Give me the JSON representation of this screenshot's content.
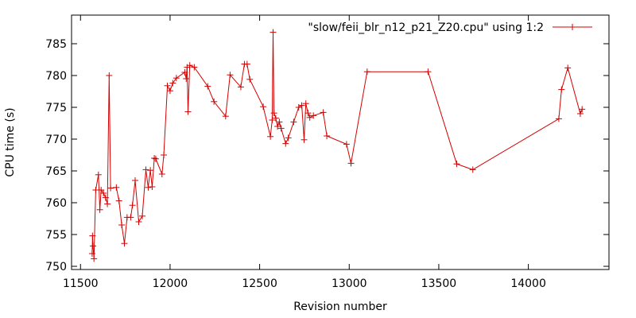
{
  "chart_data": {
    "type": "line",
    "xlabel": "Revision number",
    "ylabel": "CPU time (s)",
    "xlim": [
      11450,
      14450
    ],
    "ylim": [
      749.5,
      789.5
    ],
    "xticks": [
      11500,
      12000,
      12500,
      13000,
      13500,
      14000
    ],
    "yticks": [
      750,
      755,
      760,
      765,
      770,
      775,
      780,
      785
    ],
    "grid": false,
    "legend_position": "top-right",
    "line_color": "#d40000",
    "series": [
      {
        "name": "\"slow/feii_blr_n12_p21_Z20.cpu\" using 1:2",
        "x": [
          11565,
          11567,
          11570,
          11575,
          11585,
          11600,
          11608,
          11615,
          11628,
          11640,
          11650,
          11660,
          11668,
          11700,
          11715,
          11730,
          11745,
          11760,
          11780,
          11790,
          11805,
          11825,
          11845,
          11865,
          11878,
          11890,
          11900,
          11912,
          11920,
          11955,
          11965,
          11985,
          12000,
          12015,
          12035,
          12082,
          12090,
          12095,
          12100,
          12110,
          12135,
          12210,
          12245,
          12310,
          12335,
          12395,
          12415,
          12430,
          12445,
          12520,
          12560,
          12570,
          12575,
          12580,
          12590,
          12600,
          12610,
          12620,
          12645,
          12660,
          12690,
          12718,
          12735,
          12748,
          12758,
          12770,
          12780,
          12800,
          12855,
          12875,
          12985,
          13010,
          13100,
          13440,
          13600,
          13690,
          14170,
          14185,
          14220,
          14290,
          14300
        ],
        "y": [
          752,
          754.8,
          753.2,
          751.2,
          762,
          764.4,
          758.9,
          762,
          761.5,
          760.8,
          759.8,
          780,
          762.3,
          762.4,
          760.3,
          756.5,
          753.6,
          757.7,
          757.7,
          759.6,
          763.5,
          757,
          757.9,
          765.2,
          762.4,
          765.1,
          762.5,
          767,
          766.9,
          764.5,
          767.5,
          778.4,
          777.6,
          778.8,
          779.6,
          780.5,
          779.5,
          781.3,
          774.3,
          781.6,
          781.3,
          778.3,
          775.9,
          773.6,
          780.1,
          778.2,
          781.8,
          781.8,
          779.4,
          775.1,
          770.4,
          773,
          786.8,
          774.1,
          773.3,
          772,
          772.7,
          771.7,
          769.3,
          770.2,
          772.7,
          775,
          775.3,
          769.9,
          775.6,
          774.1,
          773.4,
          773.7,
          774.2,
          770.5,
          769.2,
          766.2,
          780.6,
          780.6,
          766.1,
          765.2,
          773.2,
          777.8,
          781.2,
          774,
          774.7
        ]
      }
    ]
  }
}
